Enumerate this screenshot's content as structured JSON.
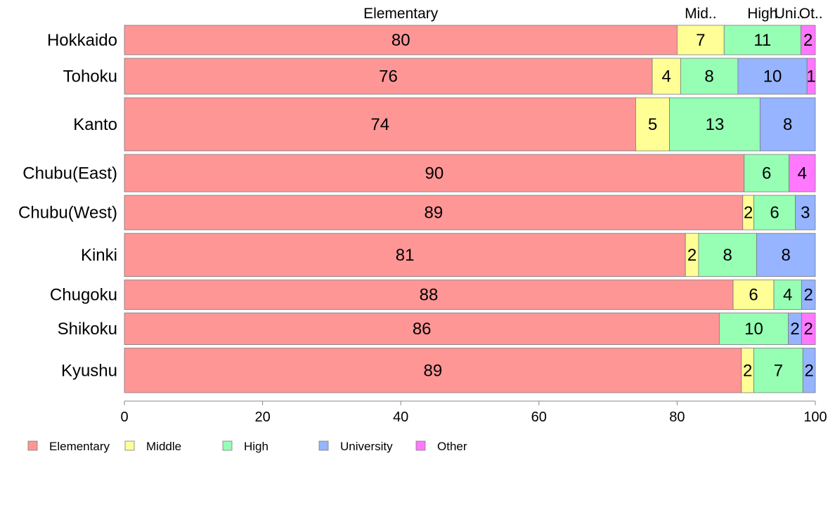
{
  "chart_data": {
    "type": "bar",
    "orientation": "horizontal",
    "stacked": true,
    "categories": [
      "Hokkaido",
      "Tohoku",
      "Kanto",
      "Chubu(East)",
      "Chubu(West)",
      "Kinki",
      "Chugoku",
      "Shikoku",
      "Kyushu"
    ],
    "series": [
      {
        "name": "Elementary",
        "color": "#ff9696",
        "values": [
          80,
          76.4,
          74,
          89.7,
          89.5,
          81.2,
          88.1,
          86.1,
          89.3
        ],
        "labels": [
          "80",
          "76",
          "74",
          "90",
          "89",
          "81",
          "88",
          "86",
          "89"
        ]
      },
      {
        "name": "Middle",
        "color": "#ffff96",
        "values": [
          6.8,
          4.1,
          4.9,
          0,
          1.6,
          1.9,
          5.9,
          0,
          1.8
        ],
        "labels": [
          "7",
          "4",
          "5",
          "",
          "2",
          "2",
          "6",
          "",
          "2"
        ]
      },
      {
        "name": "High",
        "color": "#96ffb4",
        "values": [
          11.1,
          8.3,
          13.1,
          6.5,
          6.0,
          8.4,
          4.0,
          10,
          7.1
        ],
        "labels": [
          "11",
          "8",
          "13",
          "6",
          "6",
          "8",
          "4",
          "10",
          "7"
        ]
      },
      {
        "name": "University",
        "color": "#96b4ff",
        "values": [
          0,
          10,
          8,
          0,
          2.9,
          8.5,
          2.0,
          1.9,
          1.8
        ],
        "labels": [
          "",
          "10",
          "8",
          "",
          "3",
          "8",
          "2",
          "2",
          "2"
        ]
      },
      {
        "name": "Other",
        "color": "#ff78ff",
        "values": [
          2.1,
          1.2,
          0,
          3.8,
          0,
          0,
          0,
          2.0,
          0
        ],
        "labels": [
          "2",
          "1",
          "",
          "4",
          "",
          "",
          "",
          "2",
          ""
        ]
      }
    ],
    "row_weights": [
      41,
      50,
      74,
      52,
      48,
      60,
      41,
      44,
      62
    ],
    "top_labels": [
      "Elementary",
      "Mid..",
      "High",
      "Uni..",
      "Ot.."
    ],
    "x_ticks": [
      0,
      20,
      40,
      60,
      80,
      100
    ],
    "xlim": [
      0,
      100
    ],
    "legend": [
      "Elementary",
      "Middle",
      "High",
      "University",
      "Other"
    ],
    "legend_position": "bottom-left",
    "grid": false
  }
}
